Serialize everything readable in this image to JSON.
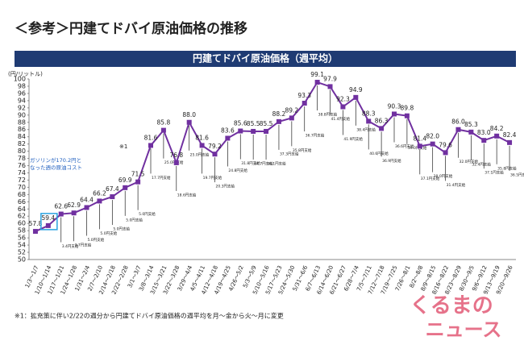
{
  "chart_data": {
    "type": "line",
    "title": "＜参考＞円建てドバイ原油価格の推移",
    "subtitle": "円建てドバイ原油価格（週平均）",
    "y_label": "(円/リットル)",
    "categories": [
      "1/3～1/7",
      "1/10～1/14",
      "1/17～1/21",
      "1/24～1/28",
      "1/31～2/4",
      "2/7～2/10",
      "2/14～2/18",
      "2/22～2/28",
      "3/1～3/7",
      "3/8～3/14",
      "3/15～3/21",
      "3/22～3/28",
      "3/29～4/4",
      "4/5～4/11",
      "4/12～4/18",
      "4/19～4/25",
      "4/26～5/2",
      "5/3～5/9",
      "5/10～5/16",
      "5/17～5/23",
      "5/24～5/30",
      "5/31～6/6",
      "6/7～6/13",
      "6/14～6/20",
      "6/21～6/27",
      "6/28～7/4",
      "7/5～7/11",
      "7/12～7/18",
      "7/19～7/25",
      "7/26～8/1",
      "8/2～8/8",
      "8/9～8/15",
      "8/16～8/22",
      "8/23～8/29",
      "8/30～9/5",
      "9/6～9/12",
      "9/13～9/19",
      "9/20～9/26"
    ],
    "series": [
      {
        "name": "円建てドバイ原油価格",
        "color": "#7030a0",
        "values": [
          57.8,
          59.4,
          62.6,
          62.9,
          64.4,
          66.2,
          67.4,
          69.9,
          71.5,
          81.6,
          85.8,
          76.8,
          88.0,
          81.6,
          79.2,
          83.6,
          85.6,
          85.5,
          85.5,
          88.2,
          89.2,
          93.3,
          99.1,
          97.9,
          92.3,
          94.9,
          88.3,
          86.3,
          90.3,
          89.8,
          81.4,
          82.0,
          79.6,
          86.0,
          85.3,
          83.0,
          84.2,
          82.4
        ],
        "value_labels": [
          "57.8",
          "59.4",
          "62.6",
          "62.9",
          "64.4",
          "66.2",
          "67.4",
          "69.9",
          "71.5",
          "81.6",
          "85.8",
          "76.8",
          "88.0",
          "81.6",
          "79.2",
          "83.6",
          "85.6",
          "85.5",
          "85.5",
          "88.2",
          "89.2",
          "93.3",
          "99.1",
          "97.9",
          "92.3",
          "94.9",
          "88.3",
          "86.3",
          "90.3",
          "89.8",
          "81.4",
          "82.0",
          "79.6",
          "86.0",
          "85.3",
          "83.0",
          "84.2",
          "82.4"
        ]
      }
    ],
    "subsidy_labels": [
      null,
      null,
      "3.4円支給",
      "3.7円支給",
      "5.0円支給",
      "5.0円支給",
      "5.0円支給",
      "5.0円支給",
      "5.0円支給",
      "17.7円支給",
      "25.0円支給",
      "18.6円支給",
      "25.0円支給",
      "19.7円支給",
      "20.3円支給",
      "24.8円支給",
      "31.8円支給",
      "34.7円支給",
      "36.1円支給",
      "37.3円支給",
      "35.8円支給",
      "36.7円支給",
      "38.8円支給",
      "41.4円支給",
      "41.9円支給",
      "38.4円支給",
      "40.6円支給",
      "36.9円支給",
      "36.6円支給",
      "39.0円支給",
      "37.1円支給",
      "38.0円支給",
      "31.4円支給",
      "32.0円支給",
      "32.4円支給",
      "37.1円支給",
      "35.8円支給",
      "36.5円支給"
    ],
    "annotations": [
      "ガソリンが170.2円と",
      "なった週の原油コスト",
      "※1"
    ],
    "footnote": "※1：拡充策に伴い2/22の週分から円建てドバイ原油価格の週平均を月～金から火～月に変更",
    "watermark": [
      "くるまの",
      "ニュース"
    ],
    "ylim": [
      50,
      100
    ],
    "yticks": [
      50,
      52,
      54,
      56,
      58,
      60,
      62,
      64,
      66,
      68,
      70,
      72,
      74,
      76,
      78,
      80,
      82,
      84,
      86,
      88,
      90,
      92,
      94,
      96,
      98,
      100
    ],
    "grid": false
  }
}
